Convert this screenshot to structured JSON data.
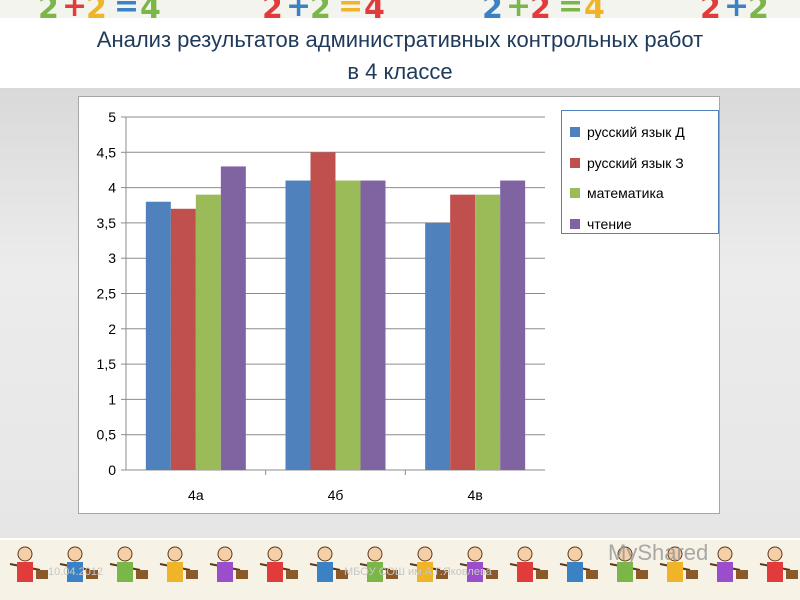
{
  "slide": {
    "title_line1": "Анализ результатов административных контрольных работ",
    "title_line2": "в 4 классе",
    "footer_date": "10.04.2012",
    "footer_org": "МБОУ СОШ им.А.Г.Яковлева",
    "watermark": "MyShared"
  },
  "colors": {
    "title": "#1f3a5a",
    "series": [
      "#4f81bd",
      "#c0504d",
      "#9bbb59",
      "#8064a2"
    ]
  },
  "chart_data": {
    "type": "bar",
    "title": "",
    "xlabel": "",
    "ylabel": "",
    "ylim": [
      0,
      5
    ],
    "yticks": [
      "0",
      "0,5",
      "1",
      "1,5",
      "2",
      "2,5",
      "3",
      "3,5",
      "4",
      "4,5",
      "5"
    ],
    "ytick_values": [
      0,
      0.5,
      1,
      1.5,
      2,
      2.5,
      3,
      3.5,
      4,
      4.5,
      5
    ],
    "grid": true,
    "legend_position": "top-right",
    "categories": [
      "4а",
      "4б",
      "4в"
    ],
    "series": [
      {
        "name": "русский язык Д",
        "values": [
          3.8,
          4.1,
          3.5
        ]
      },
      {
        "name": "русский язык З",
        "values": [
          3.7,
          4.5,
          3.9
        ]
      },
      {
        "name": "математика",
        "values": [
          3.9,
          4.1,
          3.9
        ]
      },
      {
        "name": "чтение",
        "values": [
          4.3,
          4.1,
          4.1
        ]
      }
    ]
  }
}
